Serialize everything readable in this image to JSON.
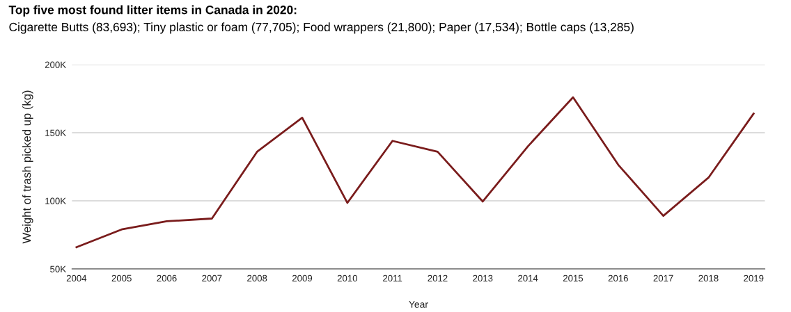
{
  "chart_data": {
    "type": "line",
    "title": "Top five most found litter items in Canada in 2020:",
    "subtitle": "Cigarette Butts (83,693); Tiny plastic or foam (77,705); Food wrappers (21,800); Paper (17,534); Bottle caps (13,285)",
    "xlabel": "Year",
    "ylabel": "Weight of trash picked up (kg)",
    "categories": [
      "2004",
      "2005",
      "2006",
      "2007",
      "2008",
      "2009",
      "2010",
      "2011",
      "2012",
      "2013",
      "2014",
      "2015",
      "2016",
      "2017",
      "2018",
      "2019"
    ],
    "series": [
      {
        "color": "#7a1c1c",
        "values": [
          66000,
          79000,
          85000,
          87000,
          136000,
          161000,
          98500,
          144000,
          136000,
          99500,
          140000,
          176000,
          126500,
          89000,
          117000,
          164000
        ]
      }
    ],
    "ylim": [
      50000,
      200000
    ],
    "yticks": [
      {
        "value": 50000,
        "label": "50K"
      },
      {
        "value": 100000,
        "label": "100K"
      },
      {
        "value": 150000,
        "label": "150K"
      },
      {
        "value": 200000,
        "label": "200K"
      }
    ],
    "grid": "y",
    "marker": "none",
    "line_style": "solid"
  }
}
